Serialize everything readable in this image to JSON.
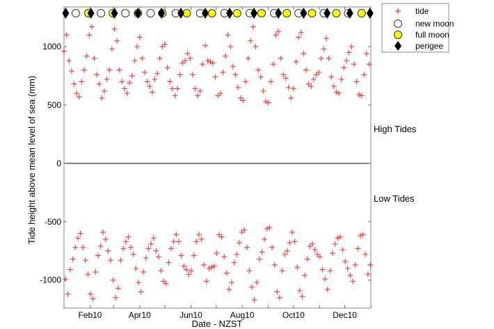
{
  "chart_data": {
    "type": "scatter",
    "xlabel": "Date - NZST",
    "ylabel": "Tide height above mean level of sea (mm)",
    "xlim_days": [
      0,
      365
    ],
    "ylim": [
      -1240,
      1340
    ],
    "yticks": [
      -1000,
      -500,
      0,
      500,
      1000
    ],
    "ytick_labels": [
      "-1000",
      "-500",
      "0",
      "500",
      "1000"
    ],
    "month_tick_days": [
      0,
      31,
      59,
      90,
      120,
      151,
      181,
      212,
      243,
      273,
      304,
      334,
      365
    ],
    "xtick_labels": [
      {
        "day": 31,
        "label": "Feb10"
      },
      {
        "day": 90,
        "label": "Apr10"
      },
      {
        "day": 151,
        "label": "Jun10"
      },
      {
        "day": 212,
        "label": "Aug10"
      },
      {
        "day": 273,
        "label": "Oct10"
      },
      {
        "day": 334,
        "label": "Dec10"
      }
    ],
    "annotations": {
      "high": "High Tides",
      "low": "Low Tides"
    },
    "legend": {
      "placement": "outside-top-right",
      "entries": [
        {
          "key": "tide",
          "label": "tide"
        },
        {
          "key": "new",
          "label": "new moon"
        },
        {
          "key": "full",
          "label": "full moon"
        },
        {
          "key": "perigee",
          "label": "perigee"
        }
      ]
    },
    "x_start_day": 0,
    "x_step_days": 3,
    "high_tides": [
      960,
      1100,
      880,
      790,
      680,
      600,
      570,
      700,
      800,
      920,
      1100,
      1170,
      900,
      760,
      680,
      560,
      620,
      720,
      800,
      980,
      1150,
      1050,
      800,
      700,
      640,
      600,
      690,
      750,
      880,
      1000,
      1080,
      900,
      780,
      700,
      660,
      610,
      720,
      770,
      900,
      1000,
      1020,
      820,
      700,
      640,
      580,
      640,
      760,
      860,
      880,
      940,
      900,
      760,
      640,
      580,
      620,
      850,
      1010,
      880,
      870,
      860,
      740,
      580,
      600,
      780,
      920,
      1100,
      1000,
      830,
      760,
      650,
      560,
      540,
      700,
      900,
      1050,
      1170,
      1000,
      800,
      740,
      620,
      530,
      520,
      700,
      850,
      1100,
      1130,
      900,
      760,
      730,
      650,
      560,
      640,
      870,
      1080,
      1120,
      940,
      800,
      680,
      660,
      720,
      760,
      780,
      900,
      980,
      1070,
      900,
      740,
      660,
      610,
      600,
      720,
      820,
      880,
      950,
      1000,
      850,
      700,
      590,
      580,
      760,
      940,
      850
    ],
    "low_tides": [
      -990,
      -1120,
      -910,
      -820,
      -720,
      -640,
      -600,
      -720,
      -830,
      -950,
      -1120,
      -1160,
      -930,
      -790,
      -710,
      -590,
      -650,
      -750,
      -830,
      -1000,
      -1150,
      -1070,
      -830,
      -730,
      -670,
      -630,
      -720,
      -780,
      -900,
      -1020,
      -1100,
      -930,
      -810,
      -730,
      -690,
      -640,
      -750,
      -800,
      -920,
      -1010,
      -1030,
      -850,
      -730,
      -670,
      -610,
      -670,
      -790,
      -880,
      -910,
      -950,
      -920,
      -790,
      -670,
      -610,
      -650,
      -870,
      -1010,
      -900,
      -890,
      -880,
      -770,
      -610,
      -630,
      -800,
      -940,
      -1080,
      -1020,
      -850,
      -780,
      -680,
      -590,
      -570,
      -720,
      -920,
      -1060,
      -1170,
      -1020,
      -820,
      -760,
      -650,
      -560,
      -550,
      -720,
      -870,
      -1100,
      -1150,
      -920,
      -780,
      -750,
      -680,
      -590,
      -670,
      -890,
      -1090,
      -1140,
      -960,
      -820,
      -710,
      -690,
      -740,
      -780,
      -800,
      -910,
      -990,
      -1080,
      -920,
      -770,
      -690,
      -640,
      -630,
      -740,
      -840,
      -900,
      -960,
      -1010,
      -870,
      -730,
      -620,
      -610,
      -780,
      -950,
      -870
    ],
    "new_moon_days": [
      14,
      44,
      73,
      103,
      133,
      162,
      191,
      221,
      250,
      279,
      309,
      338
    ],
    "full_moon_days": [
      29,
      58,
      88,
      117,
      146,
      176,
      206,
      235,
      265,
      295,
      324,
      354
    ],
    "perigee_days": [
      2,
      32,
      60,
      88,
      116,
      139,
      168,
      197,
      226,
      255,
      285,
      313,
      340,
      364
    ],
    "colors": {
      "tide": "#ff0000",
      "full": "#ffff00",
      "perigee": "#000000",
      "new": "#ffffff"
    }
  }
}
